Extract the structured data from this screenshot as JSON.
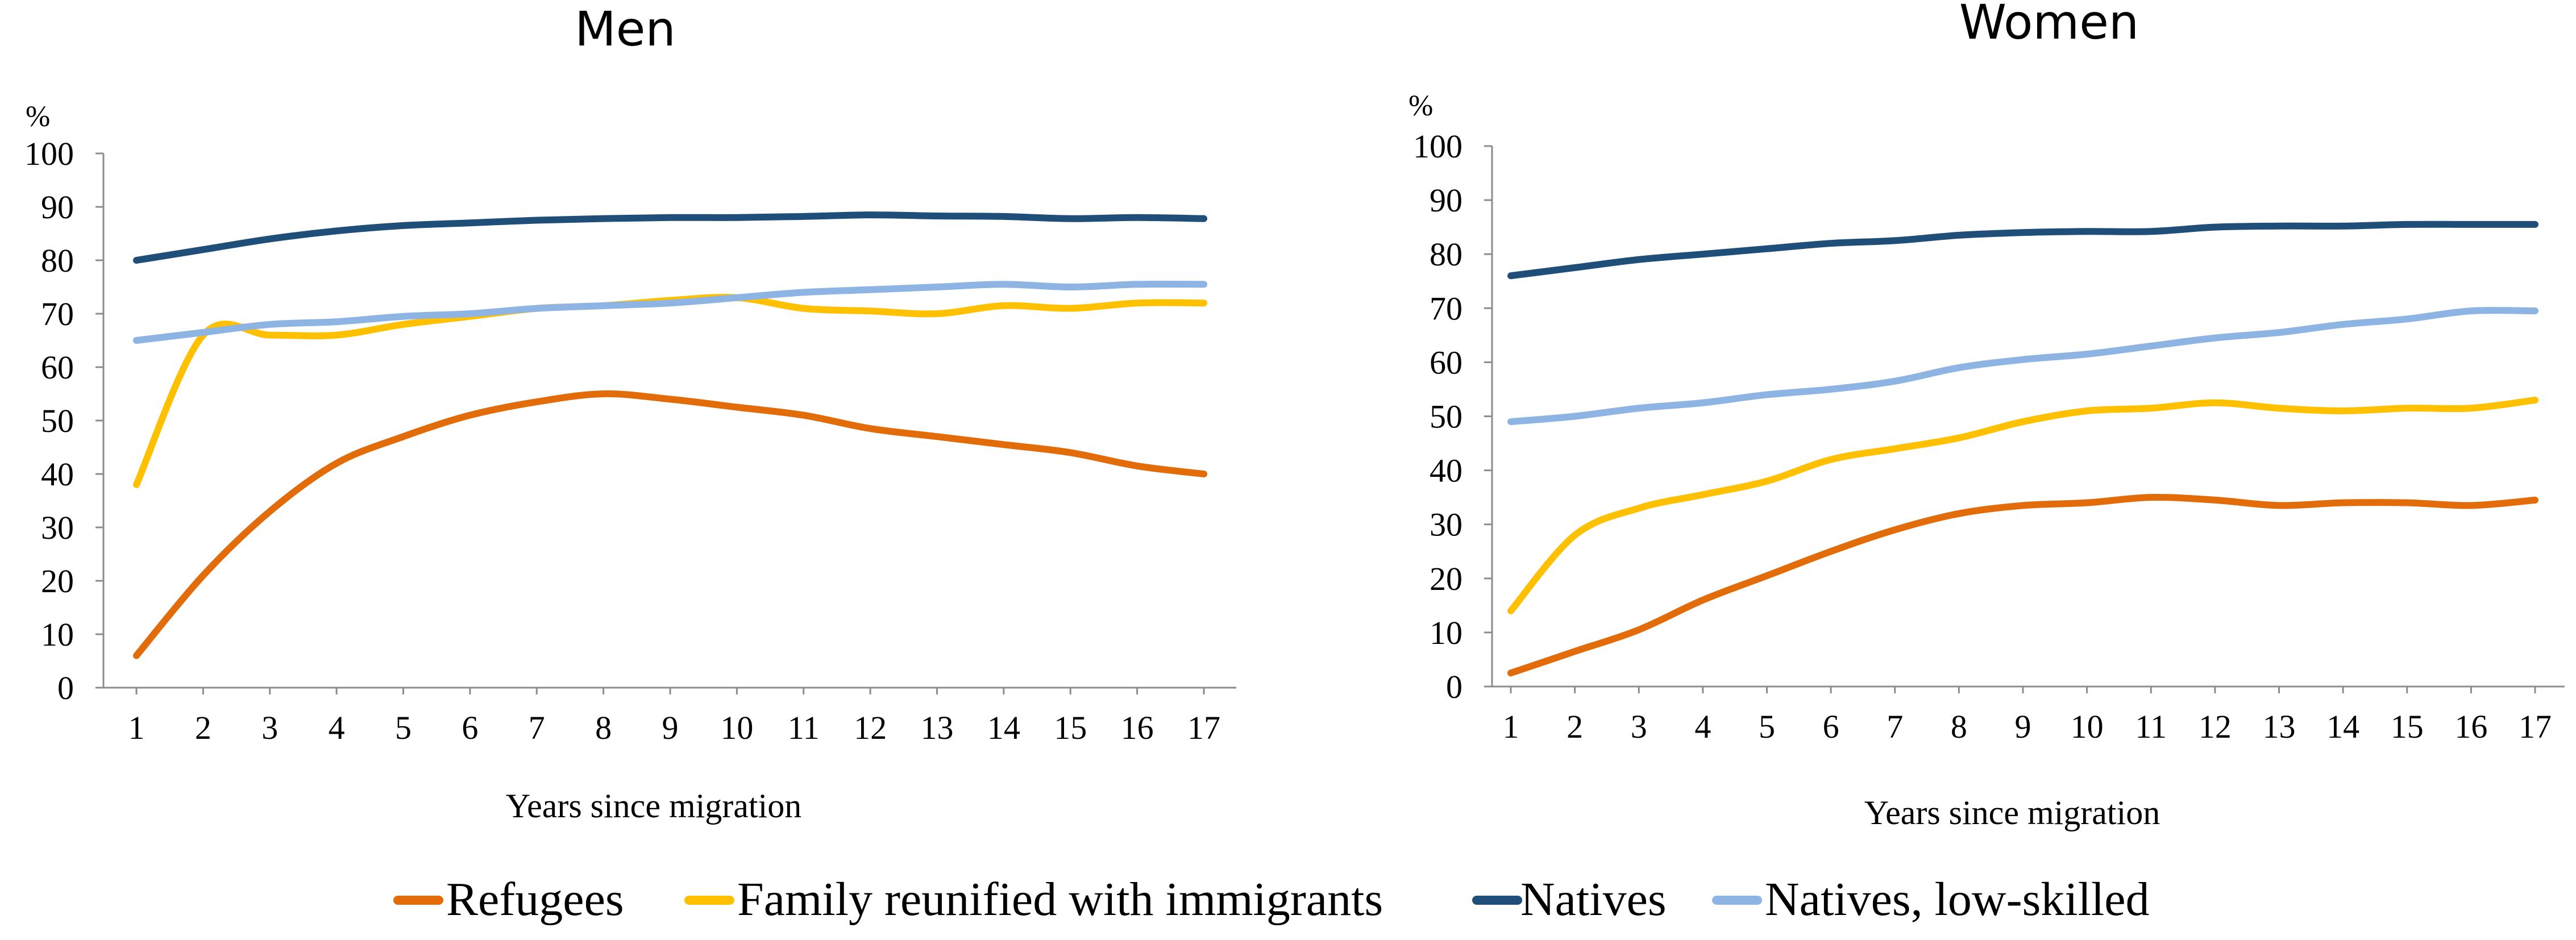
{
  "chart_data": [
    {
      "type": "line",
      "title": "Men",
      "unit": "%",
      "xlabel": "Years since migration",
      "ylabel": "",
      "ylim": [
        0,
        100
      ],
      "yticks": [
        0,
        10,
        20,
        30,
        40,
        50,
        60,
        70,
        80,
        90,
        100
      ],
      "categories": [
        "1",
        "2",
        "3",
        "4",
        "5",
        "6",
        "7",
        "8",
        "9",
        "10",
        "11",
        "12",
        "13",
        "14",
        "15",
        "16",
        "17"
      ],
      "grid": false,
      "series": [
        {
          "name": "Refugees",
          "color": "#E36C0A",
          "values": [
            6,
            21,
            33,
            42,
            47,
            51,
            53.5,
            55,
            54,
            52.5,
            51,
            48.5,
            47,
            45.5,
            44,
            41.5,
            40
          ]
        },
        {
          "name": "Family reunified with immigrants",
          "color": "#FFC000",
          "values": [
            38,
            66,
            66,
            66,
            68,
            69.5,
            71,
            71.5,
            72.5,
            73,
            71,
            70.5,
            70,
            71.5,
            71,
            72,
            72
          ]
        },
        {
          "name": "Natives",
          "color": "#1F4E79",
          "values": [
            80,
            82,
            84,
            85.5,
            86.5,
            87,
            87.5,
            87.8,
            88,
            88,
            88.2,
            88.5,
            88.3,
            88.2,
            87.8,
            88,
            87.8
          ]
        },
        {
          "name": "Natives, low-skilled",
          "color": "#8EB4E3",
          "values": [
            65,
            66.5,
            68,
            68.5,
            69.5,
            70,
            71,
            71.5,
            72,
            73,
            74,
            74.5,
            75,
            75.5,
            75,
            75.5,
            75.5
          ]
        }
      ]
    },
    {
      "type": "line",
      "title": "Women",
      "unit": "%",
      "xlabel": "Years since migration",
      "ylabel": "",
      "ylim": [
        0,
        100
      ],
      "yticks": [
        0,
        10,
        20,
        30,
        40,
        50,
        60,
        70,
        80,
        90,
        100
      ],
      "categories": [
        "1",
        "2",
        "3",
        "4",
        "5",
        "6",
        "7",
        "8",
        "9",
        "10",
        "11",
        "12",
        "13",
        "14",
        "15",
        "16",
        "17"
      ],
      "grid": false,
      "series": [
        {
          "name": "Refugees",
          "color": "#E36C0A",
          "values": [
            2.5,
            6.5,
            10.5,
            16,
            20.5,
            25,
            29,
            32,
            33.5,
            34,
            35,
            34.5,
            33.5,
            34,
            34,
            33.5,
            34.5
          ]
        },
        {
          "name": "Family reunified with immigrants",
          "color": "#FFC000",
          "values": [
            14,
            28,
            33,
            35.5,
            38,
            42,
            44,
            46,
            49,
            51,
            51.5,
            52.5,
            51.5,
            51,
            51.5,
            51.5,
            53
          ]
        },
        {
          "name": "Natives",
          "color": "#1F4E79",
          "values": [
            76,
            77.5,
            79,
            80,
            81,
            82,
            82.5,
            83.5,
            84,
            84.2,
            84.2,
            85,
            85.2,
            85.2,
            85.5,
            85.5,
            85.5
          ]
        },
        {
          "name": "Natives, low-skilled",
          "color": "#8EB4E3",
          "values": [
            49,
            50,
            51.5,
            52.5,
            54,
            55,
            56.5,
            59,
            60.5,
            61.5,
            63,
            64.5,
            65.5,
            67,
            68,
            69.5,
            69.5
          ]
        }
      ]
    }
  ],
  "legend": {
    "position": "bottom",
    "items": [
      {
        "label": "Refugees",
        "color": "#E36C0A"
      },
      {
        "label": "Family reunified with immigrants",
        "color": "#FFC000"
      },
      {
        "label": "Natives",
        "color": "#1F4E79"
      },
      {
        "label": "Natives, low-skilled",
        "color": "#8EB4E3"
      }
    ]
  }
}
